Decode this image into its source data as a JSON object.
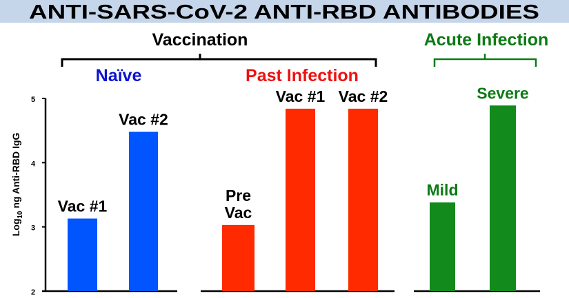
{
  "chart_data": {
    "type": "bar",
    "title": "ANTI-SARS-CoV-2 ANTI-RBD ANTIBODIES",
    "ylabel_main": "Log",
    "ylabel_sub": "10",
    "ylabel_rest": " ng Anti-RBD IgG",
    "ylim": [
      2,
      5
    ],
    "yticks": [
      "2",
      "3",
      "4",
      "5"
    ],
    "grid": false,
    "groups": [
      {
        "label": "Vaccination",
        "color": "#000000",
        "subgroups": [
          {
            "label": "Naïve",
            "color": "#0a14d0"
          },
          {
            "label": "Past Infection",
            "color": "#ee1111"
          }
        ]
      },
      {
        "label": "Acute Infection",
        "color": "#0c7a14",
        "subgroups": []
      }
    ],
    "bars": [
      {
        "label": [
          "Vac #1"
        ],
        "value": 3.13,
        "color": "#0055ff",
        "label_color": "#000000"
      },
      {
        "label": [
          "Vac #2"
        ],
        "value": 4.48,
        "color": "#0055ff",
        "label_color": "#000000"
      },
      {
        "label": [
          "Pre",
          "Vac"
        ],
        "value": 3.03,
        "color": "#ff2a00",
        "label_color": "#000000"
      },
      {
        "label": [
          "Vac #1"
        ],
        "value": 4.84,
        "color": "#ff2a00",
        "label_color": "#000000"
      },
      {
        "label": [
          "Vac #2"
        ],
        "value": 4.84,
        "color": "#ff2a00",
        "label_color": "#000000"
      },
      {
        "label": [
          "Mild"
        ],
        "value": 3.38,
        "color": "#138a1c",
        "label_color": "#0c7a14"
      },
      {
        "label": [
          "Severe"
        ],
        "value": 4.89,
        "color": "#138a1c",
        "label_color": "#0c7a14"
      }
    ]
  }
}
